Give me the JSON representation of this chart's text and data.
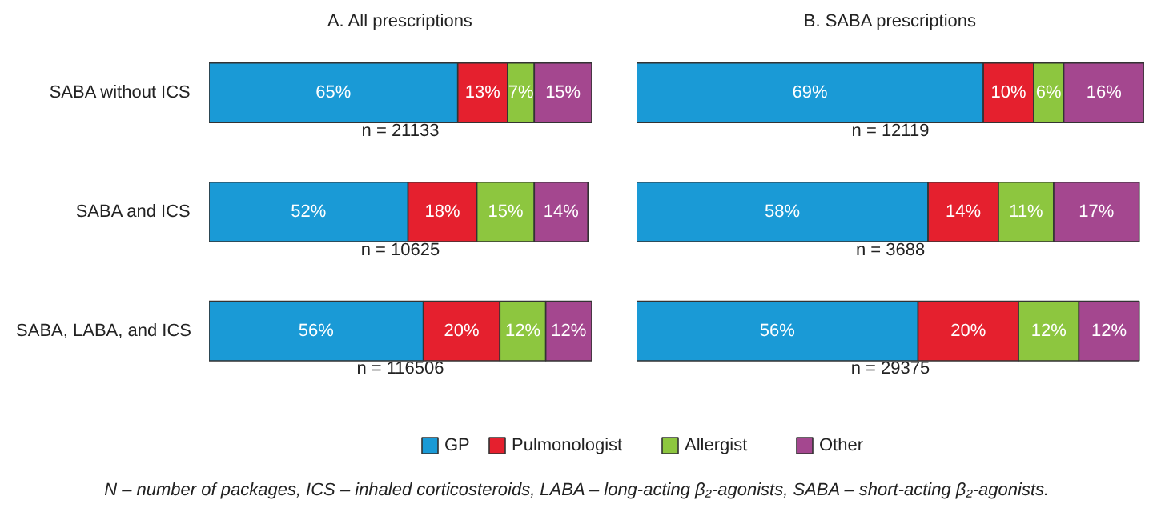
{
  "chart_data": [
    {
      "type": "bar",
      "orientation": "horizontal",
      "stacked": true,
      "title": "A. All prescriptions",
      "categories": [
        "SABA without ICS",
        "SABA and ICS",
        "SABA, LABA, and ICS"
      ],
      "xlim": [
        0,
        100
      ],
      "tick_labels": "y",
      "legend": "bottom",
      "series": [
        {
          "name": "GP",
          "color": "#1a9ad6",
          "values": [
            65,
            52,
            56
          ],
          "value_labels": [
            "65%",
            "52%",
            "56%"
          ]
        },
        {
          "name": "Pulmonologist",
          "color": "#e5202e",
          "values": [
            13,
            18,
            20
          ],
          "value_labels": [
            "13%",
            "18%",
            "20%"
          ]
        },
        {
          "name": "Allergist",
          "color": "#8dc63f",
          "values": [
            7,
            15,
            12
          ],
          "value_labels": [
            "7%",
            "15%",
            "12%"
          ]
        },
        {
          "name": "Other",
          "color": "#a4478f",
          "values": [
            15,
            14,
            12
          ],
          "value_labels": [
            "15%",
            "14%",
            "12%"
          ]
        }
      ],
      "annotations": [
        "n = 21133",
        "n = 10625",
        "n = 116506",
        "N – number of packages, ICS – inhaled corticosteroids, LABA – long-acting β₂-agonists, SABA – short-acting β₂-agonists."
      ]
    },
    {
      "type": "bar",
      "orientation": "horizontal",
      "stacked": true,
      "title": "B. SABA prescriptions",
      "categories": [
        null,
        null,
        null
      ],
      "xlim": [
        0,
        101
      ],
      "tick_labels": false,
      "series": [
        {
          "color": "#1a9ad6",
          "values": [
            69,
            58,
            56
          ],
          "value_labels": [
            "69%",
            "58%",
            "56%"
          ]
        },
        {
          "color": "#e5202e",
          "values": [
            10,
            14,
            20
          ],
          "value_labels": [
            "10%",
            "14%",
            "20%"
          ]
        },
        {
          "color": "#8dc63f",
          "values": [
            6,
            11,
            12
          ],
          "value_labels": [
            "6%",
            "11%",
            "12%"
          ]
        },
        {
          "color": "#a4478f",
          "values": [
            16,
            17,
            12
          ],
          "value_labels": [
            "16%",
            "17%",
            "12%"
          ]
        }
      ],
      "annotations": [
        "n = 12119",
        "n = 3688",
        "n = 29375"
      ]
    }
  ]
}
